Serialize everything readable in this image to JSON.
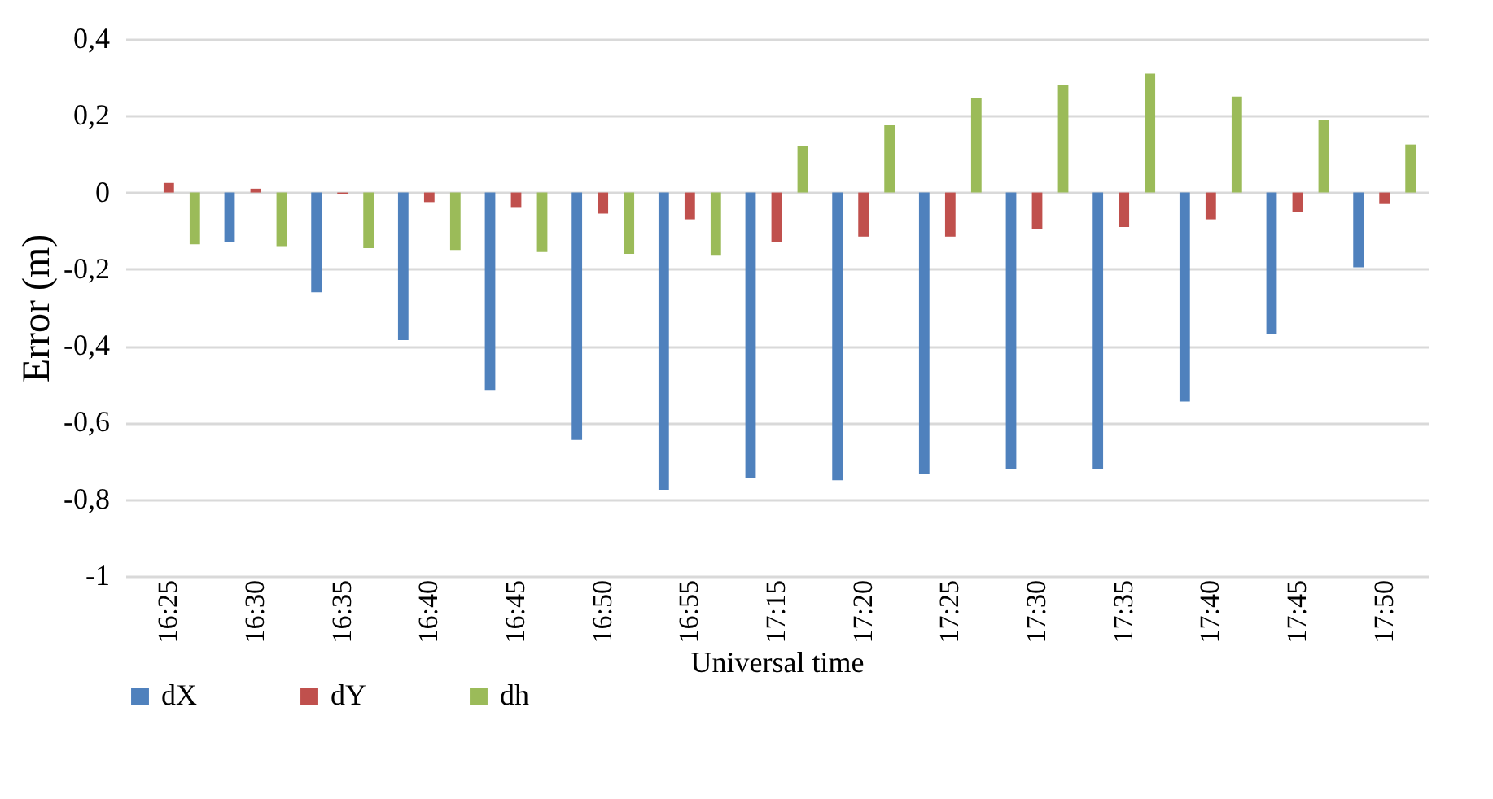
{
  "chart_data": {
    "type": "bar",
    "xlabel": "Universal time",
    "ylabel": "Error (m)",
    "categories": [
      "16:25",
      "16:30",
      "16:35",
      "16:40",
      "16:45",
      "16:50",
      "16:55",
      "17:15",
      "17:20",
      "17:25",
      "17:30",
      "17:35",
      "17:40",
      "17:45",
      "17:50"
    ],
    "series": [
      {
        "name": "dX",
        "color": "#4f81bd",
        "values": [
          0,
          -0.13,
          -0.26,
          -0.385,
          -0.515,
          -0.645,
          -0.775,
          -0.745,
          -0.75,
          -0.735,
          -0.72,
          -0.72,
          -0.545,
          -0.37,
          -0.195
        ]
      },
      {
        "name": "dY",
        "color": "#c0504d",
        "values": [
          0.025,
          0.01,
          -0.005,
          -0.025,
          -0.04,
          -0.055,
          -0.07,
          -0.13,
          -0.115,
          -0.115,
          -0.095,
          -0.09,
          -0.07,
          -0.05,
          -0.03
        ]
      },
      {
        "name": "dh",
        "color": "#9bbb59",
        "values": [
          -0.135,
          -0.14,
          -0.145,
          -0.15,
          -0.155,
          -0.16,
          -0.165,
          0.12,
          0.175,
          0.245,
          0.28,
          0.31,
          0.25,
          0.19,
          0.125
        ]
      }
    ],
    "ylim": [
      -1,
      0.4
    ],
    "yticks": [
      {
        "value": -1,
        "label": "-1"
      },
      {
        "value": -0.8,
        "label": "-0,8"
      },
      {
        "value": -0.6,
        "label": "-0,6"
      },
      {
        "value": -0.4,
        "label": "-0,4"
      },
      {
        "value": -0.2,
        "label": "-0,2"
      },
      {
        "value": 0,
        "label": "0"
      },
      {
        "value": 0.2,
        "label": "0,2"
      },
      {
        "value": 0.4,
        "label": "0,4"
      }
    ],
    "grid": "y",
    "legend": "bottom"
  }
}
